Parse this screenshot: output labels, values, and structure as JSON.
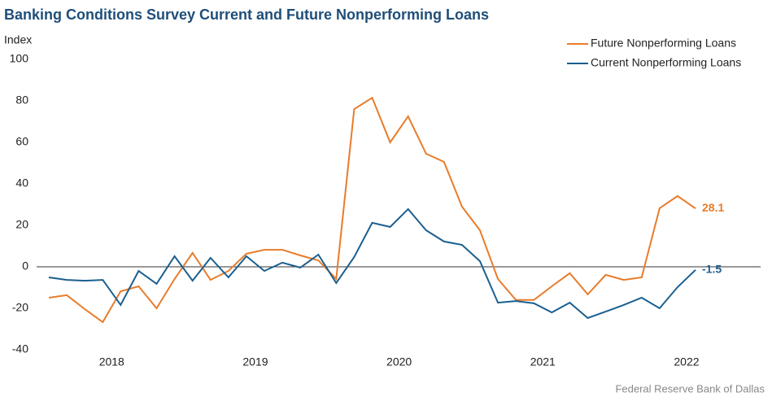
{
  "chart_data": {
    "type": "line",
    "title": "Banking Conditions Survey Current and Future Nonperforming Loans",
    "y_label": "Index",
    "source": "Federal Reserve Bank of Dallas",
    "categories": [
      null,
      null,
      null,
      "2018",
      null,
      null,
      null,
      null,
      null,
      null,
      null,
      "2019",
      null,
      null,
      null,
      null,
      null,
      null,
      null,
      "2020",
      null,
      null,
      null,
      null,
      null,
      null,
      null,
      "2021",
      null,
      null,
      null,
      null,
      null,
      null,
      null,
      "2022",
      null
    ],
    "series": [
      {
        "name": "Future Nonperforming Loans",
        "color": "#e87c2a",
        "values": [
          -14.9,
          -13.7,
          -20.4,
          -26.7,
          -11.8,
          -9.4,
          -20,
          -5.9,
          6.7,
          -6.3,
          -2,
          6.3,
          8.2,
          8.2,
          5.5,
          3.1,
          -5.9,
          76,
          81.5,
          60,
          72.5,
          54.5,
          50.6,
          29,
          17.6,
          -5.9,
          -16,
          -16,
          -9.4,
          -3.1,
          -13.3,
          -3.9,
          -6.3,
          -5.1,
          28.2,
          34.1,
          28.1
        ]
      },
      {
        "name": "Current Nonperforming Loans",
        "color": "#1a5f8f",
        "values": [
          -5.1,
          -6.3,
          -6.7,
          -6.3,
          -18.4,
          -2,
          -8.2,
          5.1,
          -6.7,
          4.3,
          -5.1,
          5.1,
          -2,
          2,
          -0.4,
          5.9,
          -7.8,
          4.7,
          21.2,
          19.2,
          27.8,
          17.6,
          12.2,
          10.6,
          2.7,
          -17.3,
          -16.5,
          -17.6,
          -22,
          -17.3,
          -24.7,
          -21.6,
          -18.4,
          -14.9,
          -20,
          -9.8,
          -1.5
        ]
      }
    ],
    "ylim": [
      -40,
      100
    ],
    "yticks": [
      -40,
      -20,
      0,
      20,
      40,
      60,
      80,
      100
    ],
    "grid": false,
    "legend": "top-right"
  }
}
